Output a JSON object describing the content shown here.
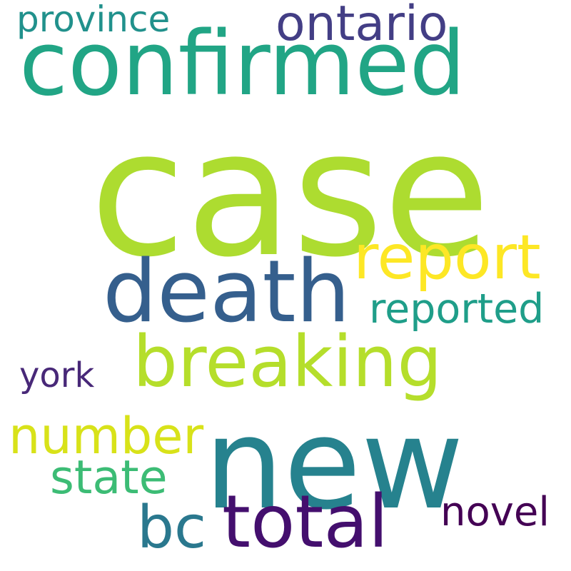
{
  "words": {
    "case": {
      "text": "case",
      "color": "#addc30"
    },
    "confirmed": {
      "text": "confirmed",
      "color": "#21a585"
    },
    "new": {
      "text": "new",
      "color": "#26828e"
    },
    "death": {
      "text": "death",
      "color": "#355f8d"
    },
    "breaking": {
      "text": "breaking",
      "color": "#b5de2b"
    },
    "report": {
      "text": "report",
      "color": "#fde725"
    },
    "total": {
      "text": "total",
      "color": "#440f6e"
    },
    "number": {
      "text": "number",
      "color": "#d8e219"
    },
    "ontario": {
      "text": "ontario",
      "color": "#433e85"
    },
    "reported": {
      "text": "reported",
      "color": "#1f9e89"
    },
    "state": {
      "text": "state",
      "color": "#3cbc75"
    },
    "bc": {
      "text": "bc",
      "color": "#2a788e"
    },
    "novel": {
      "text": "novel",
      "color": "#440154"
    },
    "province": {
      "text": "province",
      "color": "#21918c"
    },
    "york": {
      "text": "york",
      "color": "#482878"
    }
  }
}
